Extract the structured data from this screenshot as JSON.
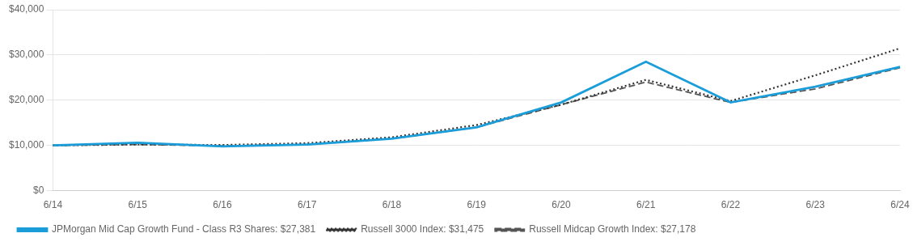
{
  "chart_data": {
    "type": "line",
    "categories": [
      "6/14",
      "6/15",
      "6/16",
      "6/17",
      "6/18",
      "6/19",
      "6/20",
      "6/21",
      "6/22",
      "6/23",
      "6/24"
    ],
    "series": [
      {
        "name": "JPMorgan Mid Cap Growth Fund - Class R3 Shares: $27,381",
        "color": "#1a9dd9",
        "line_style": "solid",
        "values": [
          10000,
          10600,
          9800,
          10200,
          11500,
          14000,
          19500,
          28500,
          19500,
          23000,
          27381
        ]
      },
      {
        "name": "Russell 3000 Index: $31,475",
        "color": "#333333",
        "line_style": "dotted",
        "values": [
          10000,
          10200,
          10100,
          10500,
          11800,
          14500,
          19000,
          24500,
          19800,
          25500,
          31475
        ]
      },
      {
        "name": "Russell Midcap Growth Index: $27,178",
        "color": "#555555",
        "line_style": "dashed",
        "values": [
          10000,
          10200,
          9900,
          10200,
          11500,
          14000,
          19000,
          24000,
          19500,
          22500,
          27178
        ]
      }
    ],
    "ylim": [
      0,
      40000
    ],
    "yticks": [
      {
        "value": 0,
        "label": "$0"
      },
      {
        "value": 10000,
        "label": "$10,000"
      },
      {
        "value": 20000,
        "label": "$20,000"
      },
      {
        "value": 30000,
        "label": "$30,000"
      },
      {
        "value": 40000,
        "label": "$40,000"
      }
    ],
    "grid": true,
    "legend": "bottom"
  }
}
